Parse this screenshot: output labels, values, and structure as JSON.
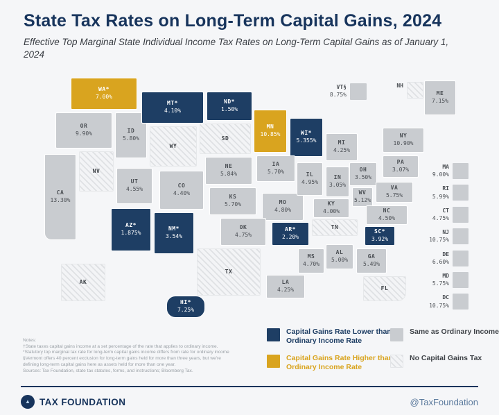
{
  "header": {
    "title": "State Tax Rates on Long-Term Capital Gains, 2024",
    "subtitle": "Effective Top Marginal State Individual Income Tax Rates on Long-Term Capital Gains as of January 1, 2024"
  },
  "colors": {
    "lower": "#1e3e64",
    "higher": "#d9a41f",
    "same": "#c9ccd0",
    "navy_dark": "#17345c",
    "handle_blue": "#5b7a9d"
  },
  "chart_data": {
    "type": "heatmap",
    "title": "State Tax Rates on Long-Term Capital Gains, 2024",
    "subtitle": "Effective Top Marginal State Individual Income Tax Rates on Long-Term Capital Gains as of January 1, 2024",
    "legend_entries": [
      "Capital Gains Rate Lower than Ordinary Income Rate",
      "Capital Gains Rate Higher than Ordinary Income Rate",
      "Same as Ordinary Income Rate",
      "No Capital Gains Tax"
    ],
    "series": [
      {
        "state": "WA",
        "label": "WA*",
        "rate": "7.00%",
        "category": "higher"
      },
      {
        "state": "OR",
        "label": "OR",
        "rate": "9.90%",
        "category": "same"
      },
      {
        "state": "CA",
        "label": "CA",
        "rate": "13.30%",
        "category": "same"
      },
      {
        "state": "ID",
        "label": "ID",
        "rate": "5.80%",
        "category": "same"
      },
      {
        "state": "NV",
        "label": "NV",
        "rate": "",
        "category": "none"
      },
      {
        "state": "UT",
        "label": "UT",
        "rate": "4.55%",
        "category": "same"
      },
      {
        "state": "AZ",
        "label": "AZ*",
        "rate": "1.875%",
        "category": "lower"
      },
      {
        "state": "MT",
        "label": "MT*",
        "rate": "4.10%",
        "category": "lower"
      },
      {
        "state": "WY",
        "label": "WY",
        "rate": "",
        "category": "none"
      },
      {
        "state": "CO",
        "label": "CO",
        "rate": "4.40%",
        "category": "same"
      },
      {
        "state": "NM",
        "label": "NM*",
        "rate": "3.54%",
        "category": "lower"
      },
      {
        "state": "ND",
        "label": "ND*",
        "rate": "1.50%",
        "category": "lower"
      },
      {
        "state": "SD",
        "label": "SD",
        "rate": "",
        "category": "none"
      },
      {
        "state": "NE",
        "label": "NE",
        "rate": "5.84%",
        "category": "same"
      },
      {
        "state": "KS",
        "label": "KS",
        "rate": "5.70%",
        "category": "same"
      },
      {
        "state": "OK",
        "label": "OK",
        "rate": "4.75%",
        "category": "same"
      },
      {
        "state": "TX",
        "label": "TX",
        "rate": "",
        "category": "none"
      },
      {
        "state": "MN",
        "label": "MN",
        "rate": "10.85%",
        "category": "higher"
      },
      {
        "state": "IA",
        "label": "IA",
        "rate": "5.70%",
        "category": "same"
      },
      {
        "state": "MO",
        "label": "MO",
        "rate": "4.80%",
        "category": "same"
      },
      {
        "state": "AR",
        "label": "AR*",
        "rate": "2.20%",
        "category": "lower"
      },
      {
        "state": "LA",
        "label": "LA",
        "rate": "4.25%",
        "category": "same"
      },
      {
        "state": "WI",
        "label": "WI*",
        "rate": "5.355%",
        "category": "lower"
      },
      {
        "state": "IL",
        "label": "IL",
        "rate": "4.95%",
        "category": "same"
      },
      {
        "state": "MS",
        "label": "MS",
        "rate": "4.70%",
        "category": "same"
      },
      {
        "state": "IN",
        "label": "IN",
        "rate": "3.05%",
        "category": "same"
      },
      {
        "state": "TN",
        "label": "TN",
        "rate": "",
        "category": "none"
      },
      {
        "state": "AL",
        "label": "AL",
        "rate": "5.00%",
        "category": "same"
      },
      {
        "state": "MI",
        "label": "MI",
        "rate": "4.25%",
        "category": "same"
      },
      {
        "state": "OH",
        "label": "OH",
        "rate": "3.50%",
        "category": "same"
      },
      {
        "state": "KY",
        "label": "KY",
        "rate": "4.00%",
        "category": "same"
      },
      {
        "state": "GA",
        "label": "GA",
        "rate": "5.49%",
        "category": "same"
      },
      {
        "state": "WV",
        "label": "WV",
        "rate": "5.12%",
        "category": "same"
      },
      {
        "state": "VA",
        "label": "VA",
        "rate": "5.75%",
        "category": "same"
      },
      {
        "state": "NC",
        "label": "NC",
        "rate": "4.50%",
        "category": "same"
      },
      {
        "state": "SC",
        "label": "SC*",
        "rate": "3.92%",
        "category": "lower"
      },
      {
        "state": "PA",
        "label": "PA",
        "rate": "3.07%",
        "category": "same"
      },
      {
        "state": "NY",
        "label": "NY",
        "rate": "10.90%",
        "category": "same"
      },
      {
        "state": "ME",
        "label": "ME",
        "rate": "7.15%",
        "category": "same"
      },
      {
        "state": "FL",
        "label": "FL",
        "rate": "",
        "category": "none"
      },
      {
        "state": "AK",
        "label": "AK",
        "rate": "",
        "category": "none"
      },
      {
        "state": "HI",
        "label": "HI*",
        "rate": "7.25%",
        "category": "lower"
      },
      {
        "state": "VT",
        "label": "VT§",
        "rate": "8.75%",
        "category": "same"
      },
      {
        "state": "NH",
        "label": "NH",
        "rate": "",
        "category": "none"
      },
      {
        "state": "MA",
        "label": "MA",
        "rate": "9.00%",
        "category": "same"
      },
      {
        "state": "RI",
        "label": "RI",
        "rate": "5.99%",
        "category": "same"
      },
      {
        "state": "CT",
        "label": "CT",
        "rate": "4.75%",
        "category": "same"
      },
      {
        "state": "NJ",
        "label": "NJ",
        "rate": "10.75%",
        "category": "same"
      },
      {
        "state": "DE",
        "label": "DE",
        "rate": "6.60%",
        "category": "same"
      },
      {
        "state": "MD",
        "label": "MD",
        "rate": "5.75%",
        "category": "same"
      },
      {
        "state": "DC",
        "label": "DC",
        "rate": "10.75%",
        "category": "same"
      }
    ]
  },
  "legend": {
    "items": [
      {
        "label": "Capital Gains Rate Lower than Ordinary Income Rate",
        "category": "lower"
      },
      {
        "label": "Capital Gains Rate Higher than Ordinary Income Rate",
        "category": "higher"
      },
      {
        "label": "Same as Ordinary Income Rate",
        "category": "same"
      },
      {
        "label": "No Capital Gains Tax",
        "category": "none"
      }
    ]
  },
  "notes": {
    "lines": [
      "Notes:",
      "†State taxes capital gains income at a set percentage of the rate that applies to ordinary income.",
      "*Statutory top marginal tax rate for long-term capital gains income differs from rate for ordinary income",
      "§Vermont offers 40 percent exclusion for long-term gains held for more than three years, but we're",
      "defining long-term capital gains here as assets held for more than one year.",
      "Sources: Tax Foundation, state tax statutes, forms, and instructions; Bloomberg Tax."
    ]
  },
  "footer": {
    "brand": "TAX FOUNDATION",
    "handle": "@TaxFoundation"
  }
}
